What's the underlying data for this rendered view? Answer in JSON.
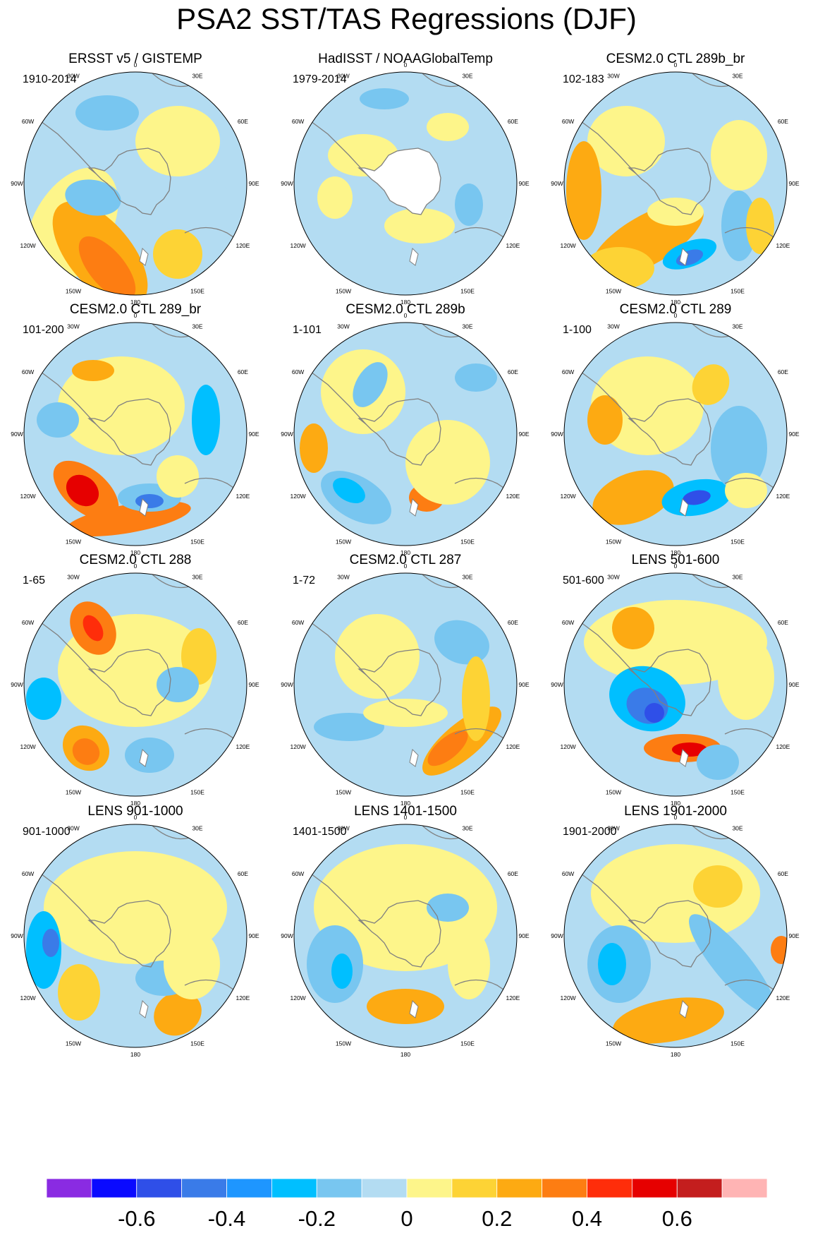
{
  "title": "PSA2 SST/TAS Regressions (DJF)",
  "lon_labels": [
    "0",
    "30E",
    "60E",
    "90E",
    "120E",
    "150E",
    "180",
    "150W",
    "120W",
    "90W",
    "60W",
    "30W"
  ],
  "panels": [
    {
      "title": "ERSST v5 / GISTEMP",
      "period": "1910-2014"
    },
    {
      "title": "HadISST / NOAAGlobalTemp",
      "period": "1979-2014"
    },
    {
      "title": "CESM2.0 CTL 289b_br",
      "period": "102-183"
    },
    {
      "title": "CESM2.0 CTL 289_br",
      "period": "101-200"
    },
    {
      "title": "CESM2.0 CTL 289b",
      "period": "1-101"
    },
    {
      "title": "CESM2.0 CTL 289",
      "period": "1-100"
    },
    {
      "title": "CESM2.0 CTL 288",
      "period": "1-65"
    },
    {
      "title": "CESM2.0 CTL 287",
      "period": "1-72"
    },
    {
      "title": "LENS 501-600",
      "period": "501-600"
    },
    {
      "title": "LENS 901-1000",
      "period": "901-1000"
    },
    {
      "title": "LENS 1401-1500",
      "period": "1401-1500"
    },
    {
      "title": "LENS 1901-2000",
      "period": "1901-2000"
    }
  ],
  "colorbar": {
    "colors": [
      "#8a2be2",
      "#0a0aff",
      "#2f4fe8",
      "#3a7be8",
      "#1e96ff",
      "#00bfff",
      "#78c6f0",
      "#b3dcf2",
      "#fdf58a",
      "#fdd335",
      "#fdaa12",
      "#fd7d12",
      "#ff2d0a",
      "#e60000",
      "#c41e1e",
      "#ffb4b4"
    ],
    "labels": [
      "-0.6",
      "-0.4",
      "-0.2",
      "0",
      "0.2",
      "0.4",
      "0.6"
    ]
  }
}
